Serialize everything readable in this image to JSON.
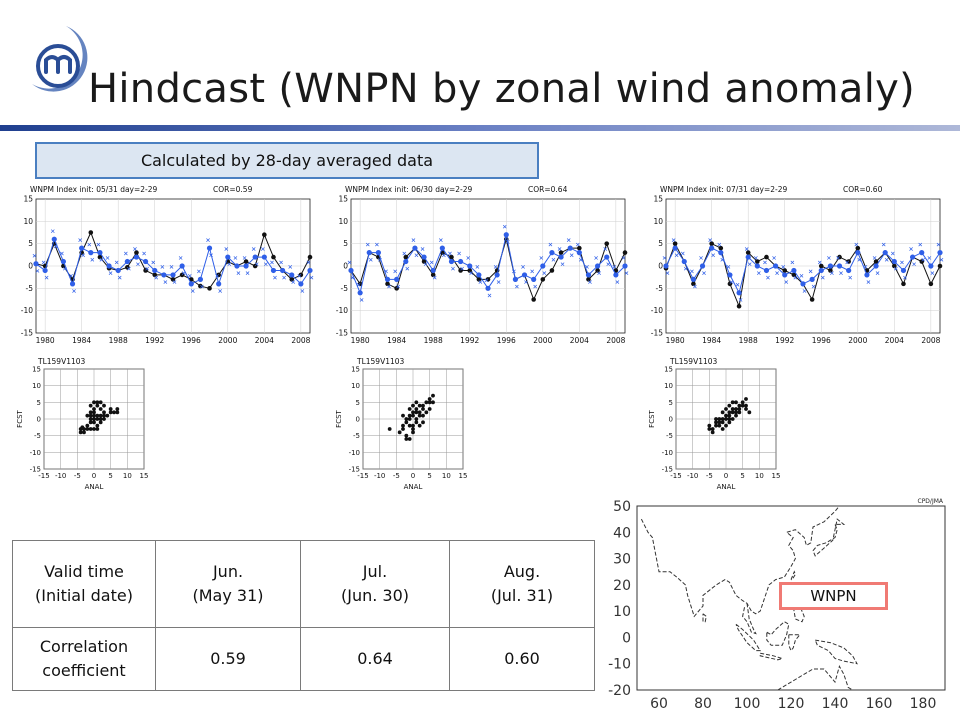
{
  "title": "Hindcast (WNPN by zonal wind anomaly)",
  "banner": "Calculated by 28-day averaged data",
  "colors": {
    "accent_blue": "#2f5fe8",
    "black": "#111111",
    "banner_border": "#4a7fc1",
    "banner_fill": "#dce6f2",
    "wnpn_box": "#f07a74",
    "rule_gradient": [
      "#1f3f8f",
      "#aeb8d8"
    ]
  },
  "logo": {
    "icon": "circular-logo-icon"
  },
  "chart_data": [
    {
      "type": "line",
      "title": "WNPM Index  init: 05/31  day=2-29",
      "cor_label": "COR=0.59",
      "x": [
        1979,
        1980,
        1981,
        1982,
        1983,
        1984,
        1985,
        1986,
        1987,
        1988,
        1989,
        1990,
        1991,
        1992,
        1993,
        1994,
        1995,
        1996,
        1997,
        1998,
        1999,
        2000,
        2001,
        2002,
        2003,
        2004,
        2005,
        2006,
        2007,
        2008,
        2009
      ],
      "xticks": [
        "1980",
        "1984",
        "1988",
        "1992",
        "1996",
        "2000",
        "2004",
        "2008"
      ],
      "xtick_values": [
        1980,
        1984,
        1988,
        1992,
        1996,
        2000,
        2004,
        2008
      ],
      "yticks": [
        "15",
        "10",
        "5",
        "0",
        "-5",
        "-10",
        "-15"
      ],
      "ytick_values": [
        15,
        10,
        5,
        0,
        -5,
        -10,
        -15
      ],
      "ylim": [
        -15,
        15
      ],
      "series": [
        {
          "color": "#111111",
          "values": [
            0.5,
            0,
            5,
            0,
            -3,
            3,
            7.5,
            2,
            -0.5,
            -1,
            -0.3,
            3,
            -1,
            -2,
            -2,
            -3,
            -2,
            -3,
            -4.5,
            -5,
            -2,
            1,
            0,
            1,
            0,
            7,
            2,
            -1,
            -3,
            -2,
            2
          ]
        },
        {
          "color": "#2f5fe8",
          "values": [
            0.5,
            -1,
            6,
            1,
            -4,
            4,
            3,
            3,
            0,
            -1,
            1,
            2,
            1,
            -1,
            -2,
            -2,
            0,
            -4,
            -3,
            4,
            -4,
            2,
            0,
            0,
            2,
            2,
            -1,
            -1,
            -2,
            -4,
            -1
          ]
        }
      ]
    },
    {
      "type": "line",
      "title": "WNPM Index  init: 06/30  day=2-29",
      "cor_label": "COR=0.64",
      "x": [
        1979,
        1980,
        1981,
        1982,
        1983,
        1984,
        1985,
        1986,
        1987,
        1988,
        1989,
        1990,
        1991,
        1992,
        1993,
        1994,
        1995,
        1996,
        1997,
        1998,
        1999,
        2000,
        2001,
        2002,
        2003,
        2004,
        2005,
        2006,
        2007,
        2008,
        2009
      ],
      "xticks": [
        "1980",
        "1984",
        "1988",
        "1992",
        "1996",
        "2000",
        "2004",
        "2008"
      ],
      "xtick_values": [
        1980,
        1984,
        1988,
        1992,
        1996,
        2000,
        2004,
        2008
      ],
      "yticks": [
        "15",
        "10",
        "5",
        "0",
        "-5",
        "-10",
        "-15"
      ],
      "ytick_values": [
        15,
        10,
        5,
        0,
        -5,
        -10,
        -15
      ],
      "ylim": [
        -15,
        15
      ],
      "series": [
        {
          "color": "#111111",
          "values": [
            -1,
            -4,
            3,
            2,
            -4,
            -5,
            2,
            4,
            1,
            -2,
            3,
            2,
            -1,
            -1,
            -3,
            -3,
            -1,
            6,
            -3,
            -2,
            -7.5,
            -3,
            -1,
            3,
            4,
            4,
            -3,
            -1,
            5,
            -1,
            3
          ]
        },
        {
          "color": "#2f5fe8",
          "values": [
            -1,
            -6,
            3,
            3,
            -3,
            -3,
            1,
            4,
            2,
            -1,
            4,
            1,
            1,
            0,
            -2,
            -5,
            -2,
            7,
            -3,
            -2,
            -3,
            0,
            3,
            2,
            4,
            3,
            -2,
            0,
            2,
            -2,
            0
          ]
        }
      ]
    },
    {
      "type": "line",
      "title": "WNPM Index  init: 07/31  day=2-29",
      "cor_label": "COR=0.60",
      "x": [
        1979,
        1980,
        1981,
        1982,
        1983,
        1984,
        1985,
        1986,
        1987,
        1988,
        1989,
        1990,
        1991,
        1992,
        1993,
        1994,
        1995,
        1996,
        1997,
        1998,
        1999,
        2000,
        2001,
        2002,
        2003,
        2004,
        2005,
        2006,
        2007,
        2008,
        2009
      ],
      "xticks": [
        "1980",
        "1984",
        "1988",
        "1992",
        "1996",
        "2000",
        "2004",
        "2008"
      ],
      "xtick_values": [
        1980,
        1984,
        1988,
        1992,
        1996,
        2000,
        2004,
        2008
      ],
      "yticks": [
        "15",
        "10",
        "5",
        "0",
        "-5",
        "-10",
        "-15"
      ],
      "ytick_values": [
        15,
        10,
        5,
        0,
        -5,
        -10,
        -15
      ],
      "ylim": [
        -15,
        15
      ],
      "series": [
        {
          "color": "#111111",
          "values": [
            -0.5,
            5,
            1,
            -4,
            0,
            5,
            4,
            -4,
            -9,
            3,
            1,
            2,
            0,
            -1,
            -2,
            -4,
            -7.5,
            0,
            -1,
            2,
            1,
            4,
            -1,
            1,
            3,
            0,
            -4,
            2,
            1,
            -4,
            0
          ]
        },
        {
          "color": "#2f5fe8",
          "values": [
            0,
            4,
            1,
            -3,
            0,
            4,
            3,
            -2,
            -6,
            2,
            0,
            -1,
            0,
            -2,
            -1,
            -4,
            -3,
            -1,
            0,
            0,
            -1,
            3,
            -2,
            0,
            3,
            1,
            -1,
            2,
            3,
            0,
            3
          ]
        }
      ]
    },
    {
      "type": "scatter",
      "title": "TL159V1103",
      "xlabel": "ANAL",
      "ylabel": "FCST",
      "xlim": [
        -15,
        15
      ],
      "ylim": [
        -15,
        15
      ],
      "xticks": [
        "-15",
        "-10",
        "-5",
        "0",
        "5",
        "10",
        "15"
      ],
      "xtick_values": [
        -15,
        -10,
        -5,
        0,
        5,
        10,
        15
      ],
      "yticks": [
        "15",
        "10",
        "5",
        "0",
        "-5",
        "-10",
        "-15"
      ],
      "ytick_values": [
        15,
        10,
        5,
        0,
        -5,
        -10,
        -15
      ],
      "points": [
        [
          -4,
          -3
        ],
        [
          -3,
          -3
        ],
        [
          -4,
          -4
        ],
        [
          -3,
          -4
        ],
        [
          -2,
          -3
        ],
        [
          -3.5,
          -2.5
        ],
        [
          -1,
          0
        ],
        [
          -1,
          1
        ],
        [
          0,
          2
        ],
        [
          0,
          1
        ],
        [
          1,
          1
        ],
        [
          1,
          0
        ],
        [
          0,
          0
        ],
        [
          2,
          1
        ],
        [
          2,
          3
        ],
        [
          3,
          2
        ],
        [
          3,
          1
        ],
        [
          2,
          -1
        ],
        [
          1,
          -2
        ],
        [
          -1,
          -1
        ],
        [
          0,
          3
        ],
        [
          1,
          4
        ],
        [
          -1,
          2
        ],
        [
          0,
          -1
        ],
        [
          -2,
          -2
        ],
        [
          5,
          3
        ],
        [
          5,
          2
        ],
        [
          7,
          3
        ],
        [
          7,
          2
        ],
        [
          6,
          2
        ],
        [
          0,
          5
        ],
        [
          1,
          5
        ],
        [
          -1,
          4
        ],
        [
          3,
          4
        ],
        [
          2,
          5
        ],
        [
          1,
          -3
        ],
        [
          -2,
          1
        ],
        [
          0,
          -3
        ],
        [
          3,
          0
        ],
        [
          4,
          1
        ],
        [
          -1,
          -3
        ],
        [
          2,
          0
        ]
      ]
    },
    {
      "type": "scatter",
      "title": "TL159V1103",
      "xlabel": "ANAL",
      "ylabel": "FCST",
      "xlim": [
        -15,
        15
      ],
      "ylim": [
        -15,
        15
      ],
      "xticks": [
        "-15",
        "-10",
        "-5",
        "0",
        "5",
        "10",
        "15"
      ],
      "xtick_values": [
        -15,
        -10,
        -5,
        0,
        5,
        10,
        15
      ],
      "yticks": [
        "15",
        "10",
        "5",
        "0",
        "-5",
        "-10",
        "-15"
      ],
      "ytick_values": [
        15,
        10,
        5,
        0,
        -5,
        -10,
        -15
      ],
      "points": [
        [
          -7,
          -3
        ],
        [
          -4,
          -4
        ],
        [
          -3,
          -3
        ],
        [
          -3,
          -2
        ],
        [
          -2,
          -1
        ],
        [
          -2,
          0
        ],
        [
          -1,
          0
        ],
        [
          -1,
          1
        ],
        [
          0,
          1
        ],
        [
          0,
          2
        ],
        [
          1,
          2
        ],
        [
          1,
          3
        ],
        [
          2,
          2
        ],
        [
          2,
          4
        ],
        [
          3,
          4
        ],
        [
          3,
          3
        ],
        [
          4,
          5
        ],
        [
          5,
          5
        ],
        [
          5,
          6
        ],
        [
          6,
          7
        ],
        [
          -1,
          -2
        ],
        [
          0,
          -3
        ],
        [
          -2,
          -5
        ],
        [
          -1,
          -6
        ],
        [
          0,
          -4
        ],
        [
          1,
          0
        ],
        [
          2,
          1
        ],
        [
          3,
          1
        ],
        [
          4,
          2
        ],
        [
          0,
          4
        ],
        [
          -3,
          1
        ],
        [
          1,
          -1
        ],
        [
          2,
          -2
        ],
        [
          5,
          3
        ],
        [
          -1,
          3
        ],
        [
          -2,
          -6
        ],
        [
          6,
          5
        ],
        [
          0,
          -2
        ],
        [
          3,
          -1
        ],
        [
          1,
          5
        ]
      ]
    },
    {
      "type": "scatter",
      "title": "TL159V1103",
      "xlabel": "ANAL",
      "ylabel": "FCST",
      "xlim": [
        -15,
        15
      ],
      "ylim": [
        -15,
        15
      ],
      "xticks": [
        "-15",
        "-10",
        "-5",
        "0",
        "5",
        "10",
        "15"
      ],
      "xtick_values": [
        -15,
        -10,
        -5,
        0,
        5,
        10,
        15
      ],
      "yticks": [
        "15",
        "10",
        "5",
        "0",
        "-5",
        "-10",
        "-15"
      ],
      "ytick_values": [
        15,
        10,
        5,
        0,
        -5,
        -10,
        -15
      ],
      "points": [
        [
          -5,
          -2
        ],
        [
          -4,
          -3
        ],
        [
          -3,
          -1
        ],
        [
          -3,
          -2
        ],
        [
          -2,
          -2
        ],
        [
          -2,
          -1
        ],
        [
          -1,
          -1
        ],
        [
          -1,
          0
        ],
        [
          0,
          0
        ],
        [
          0,
          1
        ],
        [
          1,
          1
        ],
        [
          1,
          2
        ],
        [
          2,
          3
        ],
        [
          2,
          2
        ],
        [
          3,
          3
        ],
        [
          3,
          2
        ],
        [
          4,
          4
        ],
        [
          5,
          5
        ],
        [
          5,
          4
        ],
        [
          6,
          4
        ],
        [
          6,
          3
        ],
        [
          7,
          2
        ],
        [
          -4,
          -4
        ],
        [
          -1,
          -3
        ],
        [
          0,
          -2
        ],
        [
          1,
          -1
        ],
        [
          2,
          0
        ],
        [
          3,
          1
        ],
        [
          4,
          3
        ],
        [
          -5,
          -3
        ],
        [
          0,
          3
        ],
        [
          1,
          4
        ],
        [
          2,
          5
        ],
        [
          -2,
          0
        ],
        [
          -3,
          0
        ],
        [
          6,
          6
        ],
        [
          4,
          2
        ],
        [
          1,
          0
        ],
        [
          -1,
          2
        ],
        [
          3,
          5
        ]
      ]
    }
  ],
  "table": {
    "rows": [
      [
        "Valid time\n(Initial date)",
        "Jun.\n(May 31)",
        "Jul.\n(Jun. 30)",
        "Aug.\n(Jul. 31)"
      ],
      [
        "Correlation\ncoefficient",
        "0.59",
        "0.64",
        "0.60"
      ]
    ]
  },
  "map": {
    "header": "CPD/JMA",
    "region_label": "WNPN",
    "yticks": [
      "50",
      "40",
      "30",
      "20",
      "10",
      "0",
      "-10",
      "-20"
    ],
    "ytick_values": [
      50,
      40,
      30,
      20,
      10,
      0,
      -10,
      -20
    ],
    "xticks": [
      "60",
      "80",
      "100",
      "120",
      "140",
      "160",
      "180"
    ],
    "xtick_values": [
      60,
      80,
      100,
      120,
      140,
      160,
      180
    ],
    "lon_range": [
      50,
      190
    ],
    "lat_range": [
      -20,
      50
    ]
  }
}
